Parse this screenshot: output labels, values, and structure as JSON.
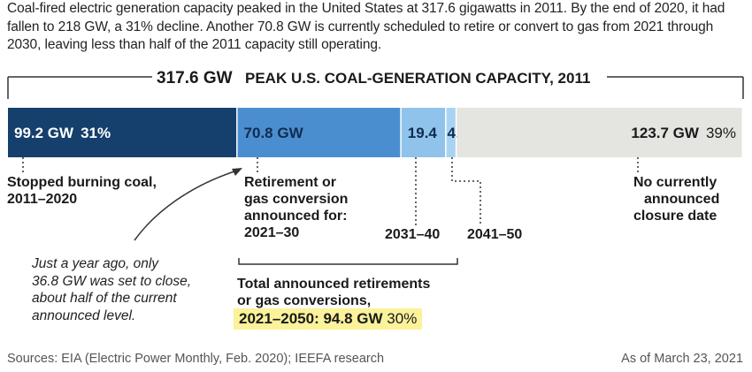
{
  "intro": "Coal-fired electric generation capacity peaked in the United States at 317.6 gigawatts in 2011. By the end of 2020, it had fallen to 218 GW, a 31% decline. Another 70.8 GW is currently scheduled to retire or convert to gas from 2021 through 2030, leaving less than half of the 2011 capacity still operating.",
  "header": {
    "value": "317.6 GW",
    "label": "PEAK U.S. COAL-GENERATION CAPACITY, 2011"
  },
  "colors": {
    "stopped": "#153f6c",
    "2021_30": "#4b8ed0",
    "2031_40": "#8fc3eb",
    "2041_50": "#a9d3f2",
    "none": "#e4e4e0",
    "highlight": "#fbf29a"
  },
  "chart_data": {
    "type": "bar",
    "orientation": "horizontal-stacked",
    "total": 317.6,
    "unit": "GW",
    "title": "317.6 GW PEAK U.S. COAL-GENERATION CAPACITY, 2011",
    "segments": [
      {
        "key": "stopped",
        "value": 99.2,
        "value_label": "99.2 GW",
        "pct_label": "31%",
        "description": [
          "Stopped burning coal,",
          "2011–2020"
        ]
      },
      {
        "key": "2021_30",
        "value": 70.8,
        "value_label": "70.8 GW",
        "pct_label": "",
        "description": [
          "Retirement or",
          "gas conversion",
          "announced for:",
          "2021–30"
        ]
      },
      {
        "key": "2031_40",
        "value": 19.4,
        "value_label": "19.4",
        "pct_label": "",
        "description": [
          "2031–40"
        ]
      },
      {
        "key": "2041_50",
        "value": 4.5,
        "value_label": "4.5",
        "pct_label": "",
        "description": [
          "2041–50"
        ]
      },
      {
        "key": "none",
        "value": 123.7,
        "value_label": "123.7 GW",
        "pct_label": "39%",
        "description": [
          "No currently",
          "announced",
          "closure date"
        ]
      }
    ]
  },
  "note": [
    "Just a year ago, only",
    "36.8 GW was set to close,",
    "about half of the current",
    "announced level."
  ],
  "total": {
    "text": [
      "Total announced retirements",
      "or gas conversions,"
    ],
    "period_value": "2021–2050:  94.8 GW",
    "pct": "30%"
  },
  "footer": {
    "sources": "Sources:  EIA (Electric Power Monthly, Feb. 2020); IEEFA research",
    "as_of": "As of March 23, 2021"
  }
}
